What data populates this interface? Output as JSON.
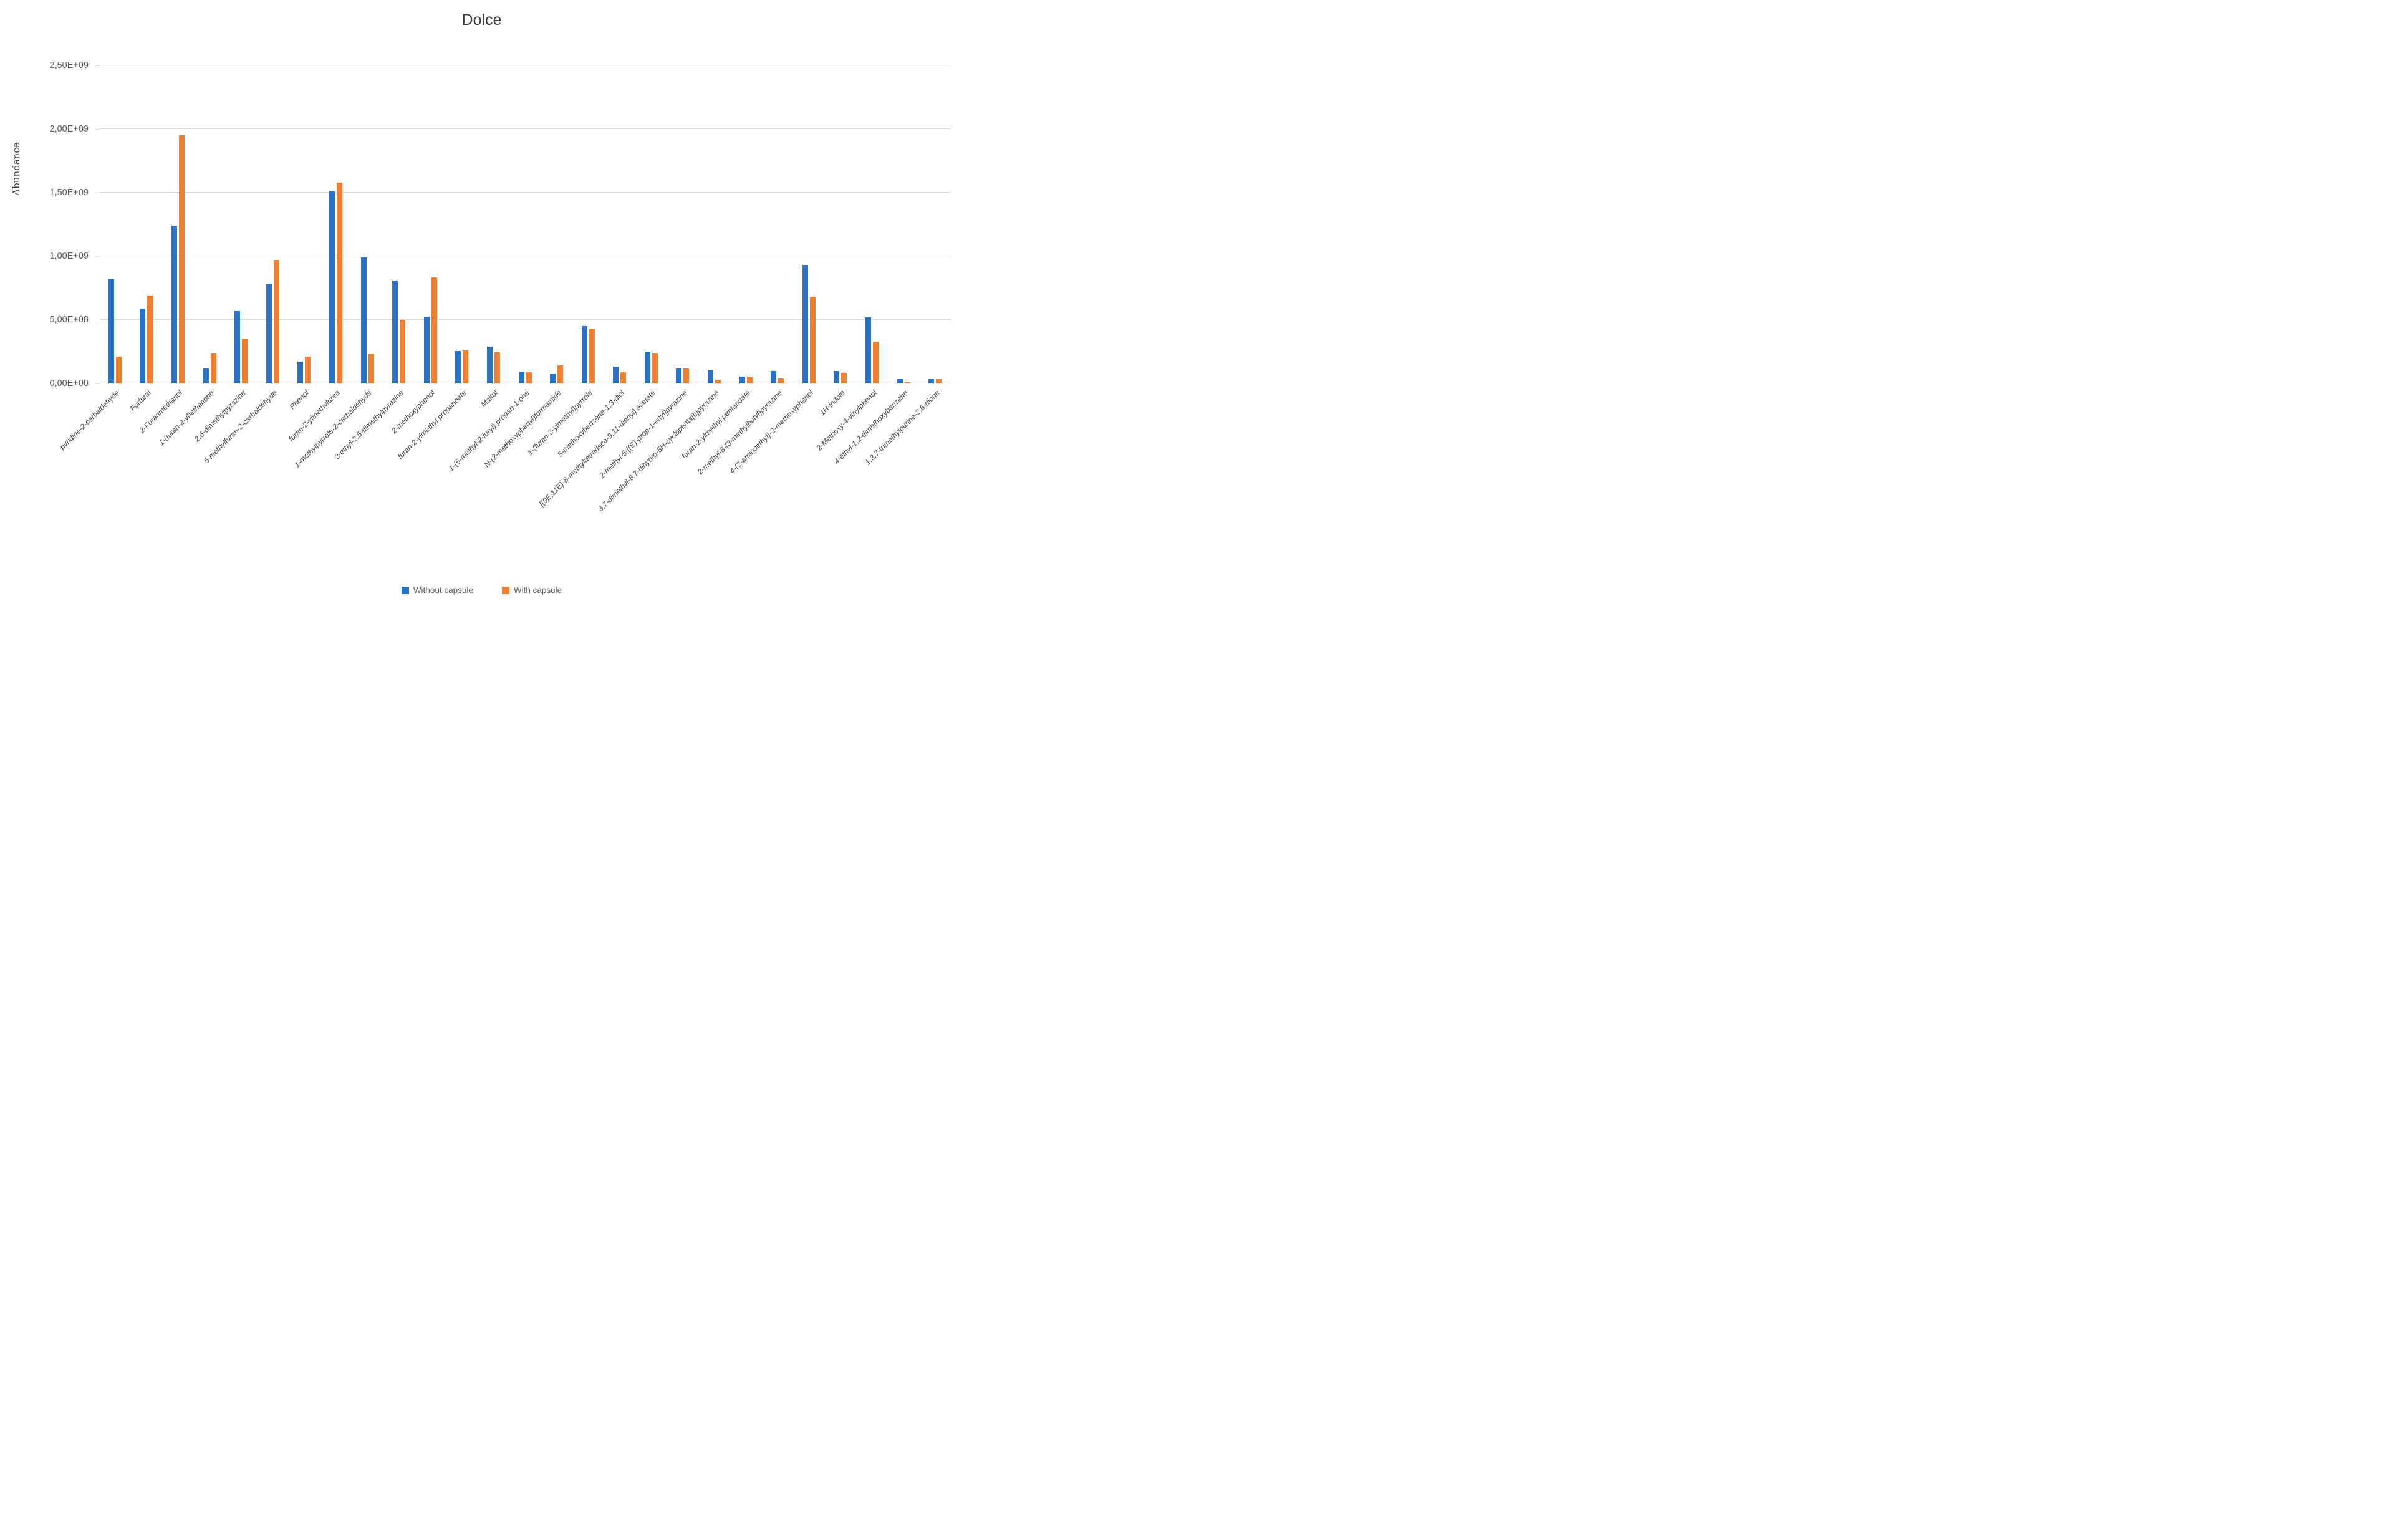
{
  "colors": {
    "series_blue": "#2873C8",
    "series_orange": "#F08030",
    "gridline": "#D9D9D9",
    "text_muted": "#595959",
    "text_dark": "#404040"
  },
  "chart_data": {
    "type": "bar",
    "title": "Dolce",
    "xlabel": "",
    "ylabel": "Abundance",
    "ylim": [
      0,
      2500000000
    ],
    "grid": true,
    "legend_position": "bottom",
    "y_ticks": [
      {
        "label": "0,00E+00",
        "value": 0
      },
      {
        "label": "5,00E+08",
        "value": 500000000
      },
      {
        "label": "1,00E+09",
        "value": 1000000000
      },
      {
        "label": "1,50E+09",
        "value": 1500000000
      },
      {
        "label": "2,00E+09",
        "value": 2000000000
      },
      {
        "label": "2,50E+09",
        "value": 2500000000
      }
    ],
    "categories": [
      "pyridine-2-carbaldehyde",
      "Furfural",
      "2-Furanmethanol",
      "1-(furan-2-yl)ethanone",
      "2,6-dimethylpyrazine",
      "5-methylfuran-2-carbaldehyde",
      "Phenol",
      "furan-2-ylmethylurea",
      "1-methylpyrrole-2-carbaldehyde",
      "3-ethyl-2,5-dimethylpyrazine",
      "2-methoxyphenol",
      "furan-2-ylmethyl propanoate",
      "Maltol",
      "1-(5-methyl-2-furyl) propan-1-one",
      "N-(2-methoxyphenyl)formamide",
      "1-(furan-2-ylmethyl)pyrrole",
      "5-methoxybenzene-1,3-diol",
      "[(9E,11E)-8-methyltetradeca-9,11-dienyl] acetate",
      "2-methyl-5-[(E)-prop-1-enyl]pyrazine",
      "3,7-dimethyl-6,7-dihydro-5H-cyclopenta[b]pyrazine",
      "furan-2-ylmethyl pentanoate",
      "2-methyl-6-(3-methylbutyl)pyrazine",
      "4-(2-aminoethyl)-2-methoxyphenol",
      "1H-indole",
      "2-Methoxy-4-vinylphenol",
      "4-ethyl-1,2-dimethoxybenzene",
      "1,3,7-trimethylpurine-2,6-dione"
    ],
    "series": [
      {
        "name": "Without capsule",
        "color": "#2873C8",
        "values": [
          820000000,
          590000000,
          1240000000,
          120000000,
          570000000,
          780000000,
          170000000,
          1510000000,
          990000000,
          810000000,
          525000000,
          255000000,
          290000000,
          95000000,
          75000000,
          450000000,
          130000000,
          250000000,
          120000000,
          105000000,
          55000000,
          100000000,
          930000000,
          100000000,
          520000000,
          35000000,
          35000000
        ]
      },
      {
        "name": "With capsule",
        "color": "#F08030",
        "values": [
          210000000,
          690000000,
          1950000000,
          235000000,
          350000000,
          970000000,
          210000000,
          1580000000,
          230000000,
          500000000,
          835000000,
          260000000,
          245000000,
          90000000,
          140000000,
          425000000,
          90000000,
          235000000,
          120000000,
          30000000,
          50000000,
          40000000,
          680000000,
          85000000,
          330000000,
          10000000,
          35000000
        ]
      }
    ]
  }
}
